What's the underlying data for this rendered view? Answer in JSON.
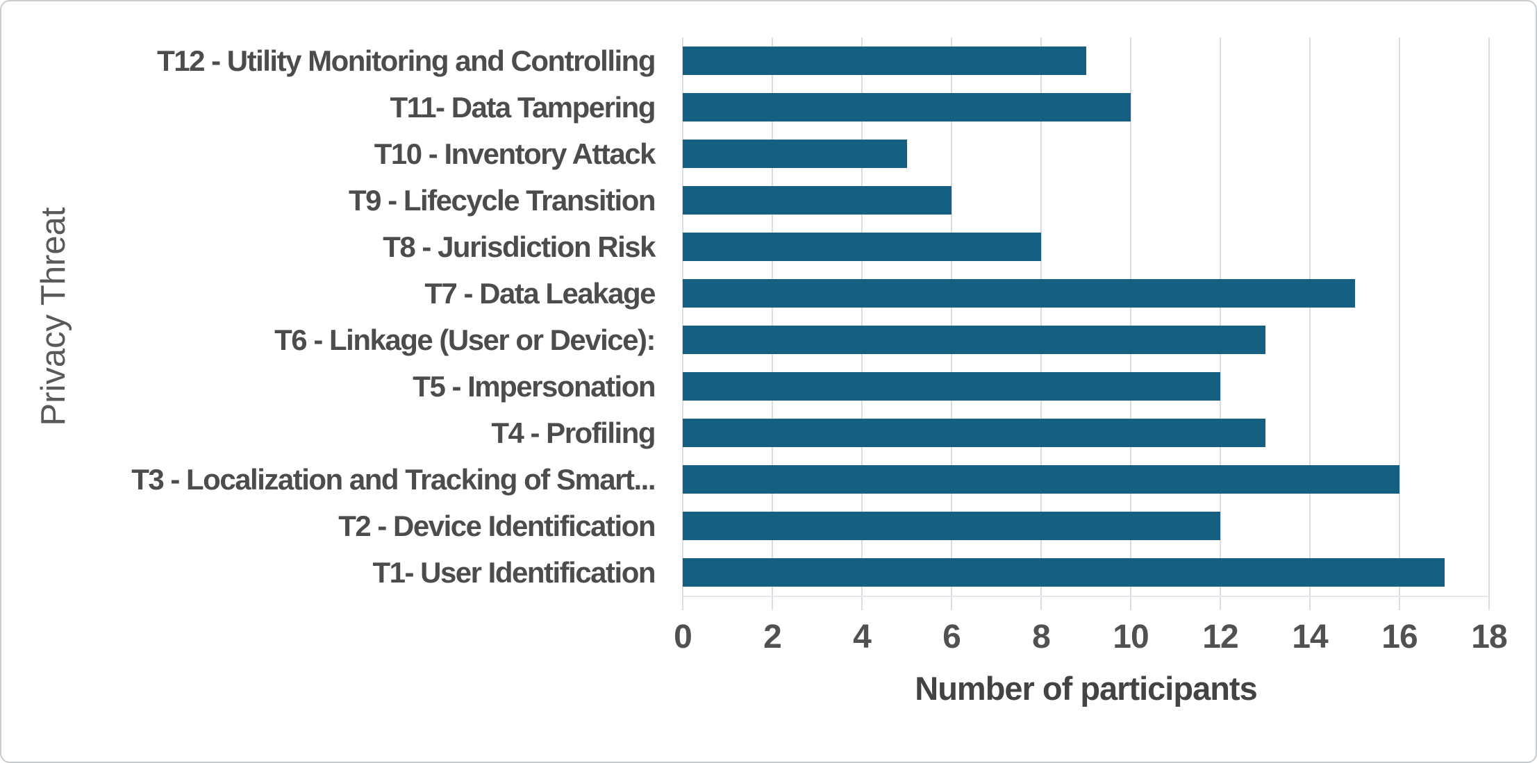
{
  "chart_data": {
    "type": "bar",
    "orientation": "horizontal",
    "title": "",
    "xlabel": "Number of participants",
    "ylabel": "Privacy Threat",
    "xlim": [
      0,
      18
    ],
    "x_ticks": [
      0,
      2,
      4,
      6,
      8,
      10,
      12,
      14,
      16,
      18
    ],
    "grid": "vertical-gridlines-only",
    "legend": "none",
    "categories": [
      "T12 - Utility Monitoring and Controlling",
      "T11- Data Tampering",
      "T10 - Inventory Attack",
      "T9 - Lifecycle Transition",
      "T8 - Jurisdiction Risk",
      "T7 - Data Leakage",
      "T6 - Linkage (User or Device):",
      "T5 - Impersonation",
      "T4 - Profiling",
      "T3 - Localization and Tracking of Smart...",
      "T2 - Device Identification",
      "T1- User Identification"
    ],
    "values": [
      9,
      10,
      5,
      6,
      8,
      15,
      13,
      12,
      13,
      16,
      12,
      17
    ],
    "colors": {
      "bar": "#156082",
      "category_text": "#4c4c4c",
      "tick_text": "#515151",
      "axis_title_text": "#434343",
      "y_axis_title_text": "#595959",
      "gridline": "#d9dde3"
    }
  }
}
